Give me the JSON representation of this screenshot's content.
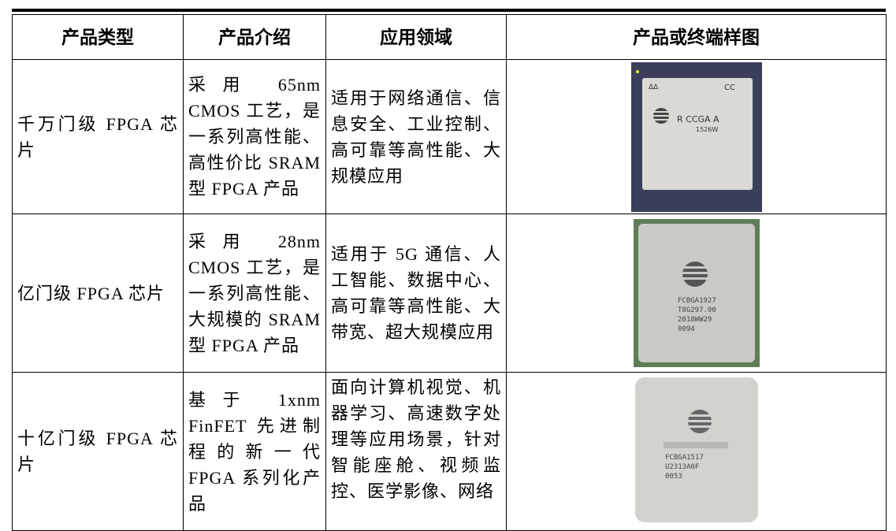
{
  "table": {
    "header": [
      "产品类型",
      "产品介绍",
      "应用领域",
      "产品或终端样图"
    ],
    "rows": [
      {
        "type": "千万门级 FPGA 芯片",
        "intro": "采用 65nm CMOS 工艺，是一系列高性能、高性价比 SRAM 型 FPGA 产品",
        "field": "适用于网络通信、信息安全、工业控制、高可靠等高性能、大规模应用",
        "markings": [
          "CC",
          "R CCGA A",
          "1526W"
        ]
      },
      {
        "type": "亿门级 FPGA 芯片",
        "intro": "采用 28nm CMOS 工艺，是一系列高性能、大规模的 SRAM 型 FPGA 产品",
        "field": "适用于 5G 通信、人工智能、数据中心、高可靠等高性能、大带宽、超大规模应用",
        "markings": [
          "FCBGA1927",
          "T8G297.00",
          "2018WW29",
          "0094"
        ]
      },
      {
        "type": "十亿门级 FPGA 芯片",
        "intro": "基于 1xnm FinFET 先进制程的新一代 FPGA 系列化产品",
        "field": "面向计算机视觉、机器学习、高速数字处理等应用场景，针对智能座舱、视频监控、医学影像、网络",
        "markings": [
          "FCBGA1517",
          "U2313A0F",
          "0053"
        ]
      }
    ]
  }
}
